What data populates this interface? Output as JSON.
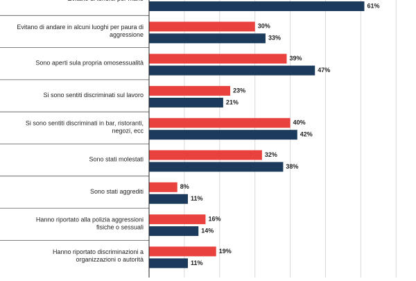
{
  "chart_data": {
    "type": "hbar",
    "categories": [
      "Evitano di tenersi per mano",
      "Evitano di andare in alcuni luoghi per paura di\naggressione",
      "Sono aperti sula propria omosessualità",
      "Si sono sentiti discriminati sul lavoro",
      "Si sono sentiti discriminati in bar, ristoranti,\nnegozi, ecc",
      "Sono stati molestati",
      "Sono stati aggrediti",
      "Hanno riportato alla polizia aggressioni\nfisiche o sessuali",
      "Hanno riportato discriminazioni a\norganizzazioni o autorità"
    ],
    "series": [
      {
        "color": "#e8413e",
        "values": [
          null,
          30,
          39,
          23,
          40,
          32,
          8,
          16,
          19
        ],
        "value_labels": [
          null,
          "30%",
          "39%",
          "23%",
          "40%",
          "32%",
          "8%",
          "16%",
          "19%"
        ]
      },
      {
        "color": "#1c3b5c",
        "values": [
          61,
          33,
          47,
          21,
          42,
          38,
          11,
          14,
          11
        ],
        "value_labels": [
          "61%",
          "33%",
          "47%",
          "21%",
          "42%",
          "38%",
          "11%",
          "14%",
          "11%"
        ]
      }
    ],
    "xlim": [
      0,
      75
    ],
    "xticks": [
      0,
      10,
      20,
      30,
      40,
      50,
      60,
      70
    ],
    "grid": true
  }
}
